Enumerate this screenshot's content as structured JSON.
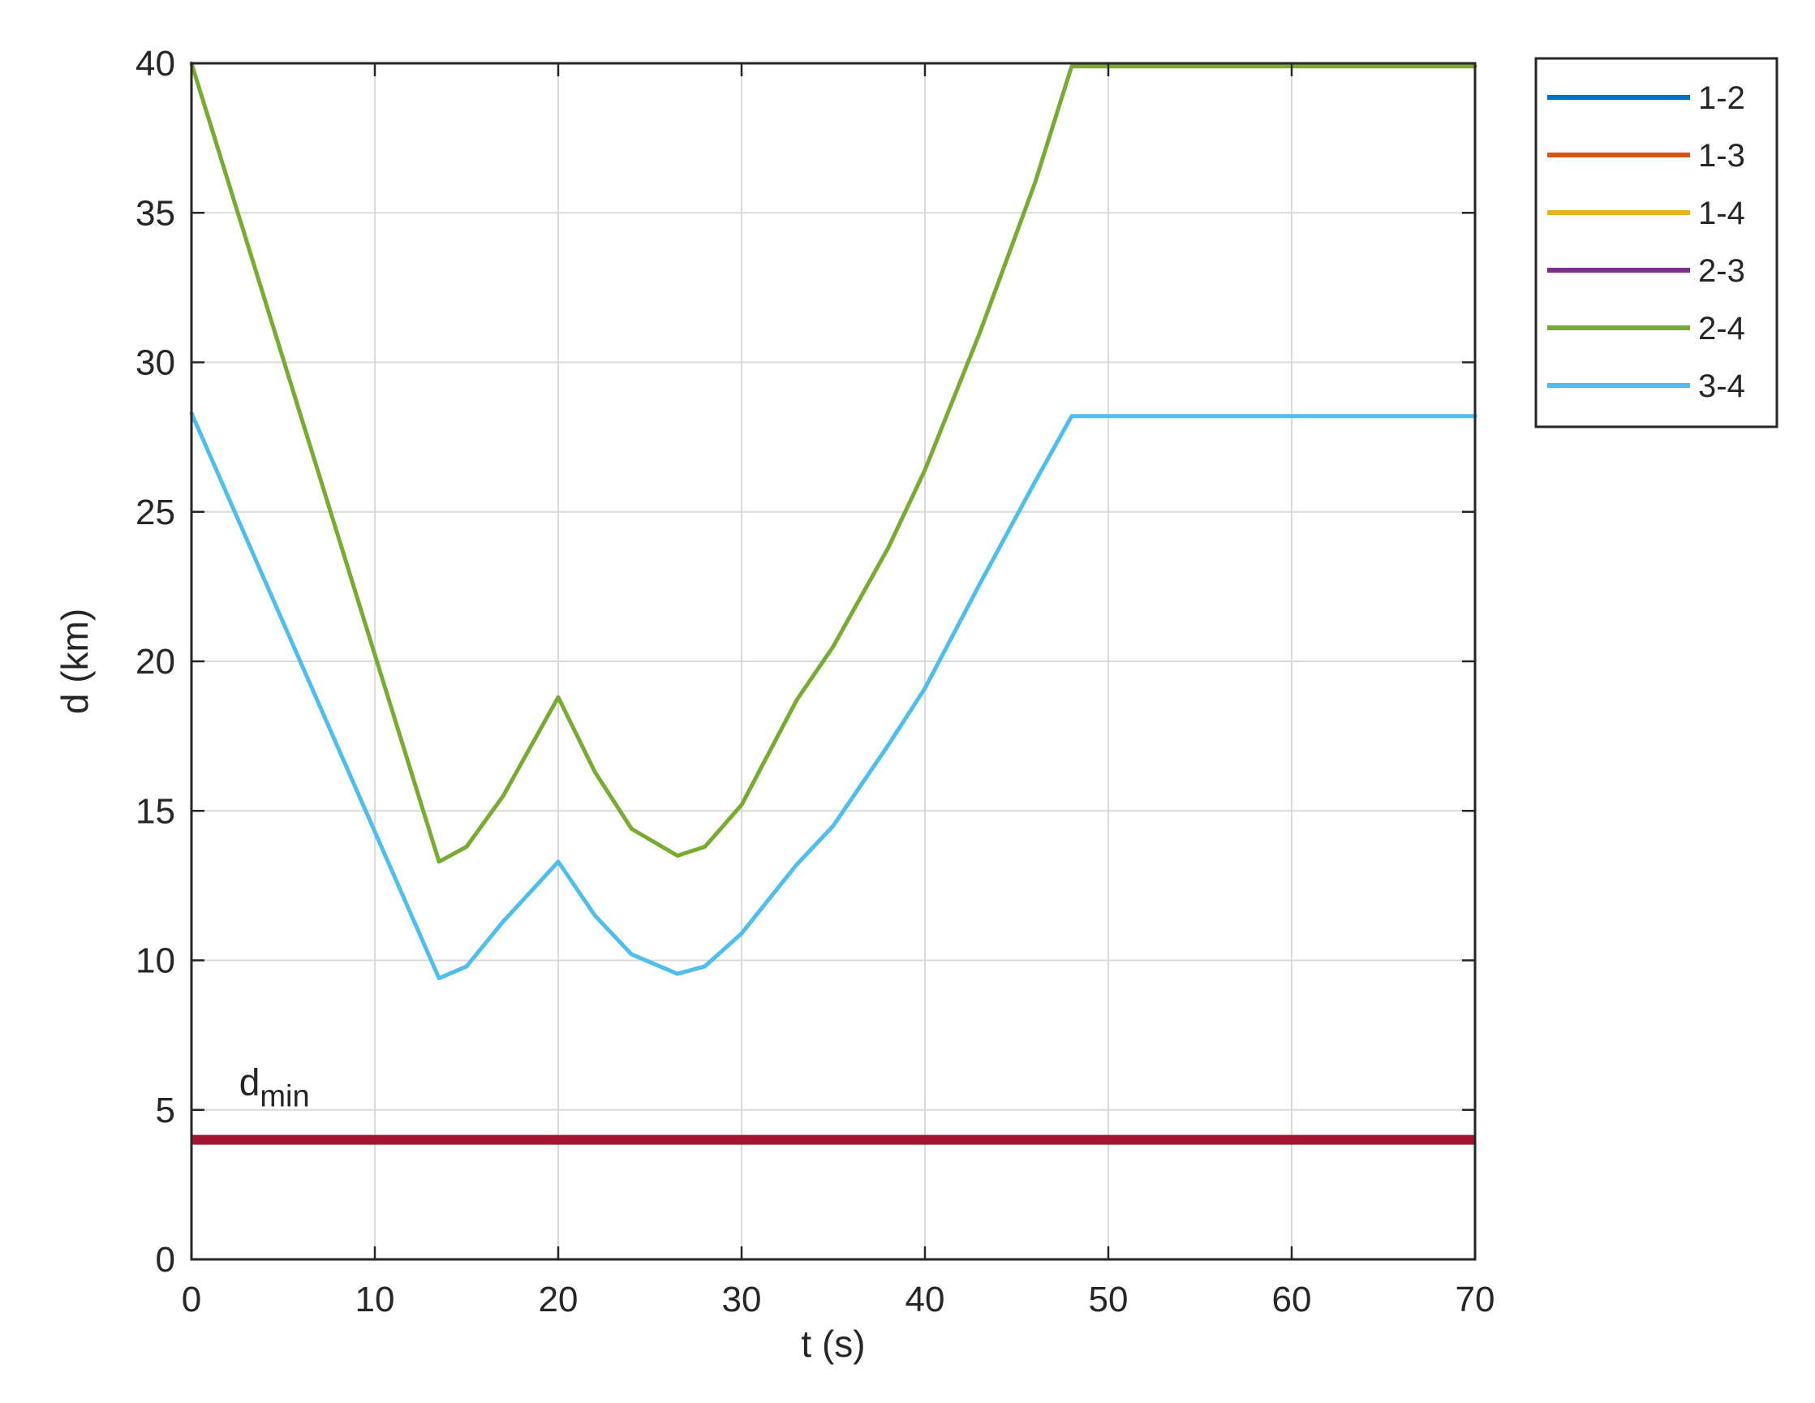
{
  "chart_data": {
    "type": "line",
    "xlabel": "t (s)",
    "ylabel": "d (km)",
    "xlim": [
      0,
      70
    ],
    "ylim": [
      0,
      40
    ],
    "xticks": [
      "0",
      "10",
      "20",
      "30",
      "40",
      "50",
      "60",
      "70"
    ],
    "yticks": [
      "0",
      "5",
      "10",
      "15",
      "20",
      "25",
      "30",
      "35",
      "40"
    ],
    "grid": true,
    "legend_position": "outside-top-right",
    "series": [
      {
        "name": "1-2",
        "color": "#0072BD",
        "points": []
      },
      {
        "name": "1-3",
        "color": "#D95319",
        "points": []
      },
      {
        "name": "1-4",
        "color": "#EDB120",
        "points": []
      },
      {
        "name": "2-3",
        "color": "#7E2F8E",
        "points": []
      },
      {
        "name": "2-4",
        "color": "#77AC30",
        "points": [
          [
            0,
            40
          ],
          [
            13.5,
            13.3
          ],
          [
            15,
            13.8
          ],
          [
            17,
            15.5
          ],
          [
            20,
            18.8
          ],
          [
            22,
            16.3
          ],
          [
            24,
            14.4
          ],
          [
            26.5,
            13.5
          ],
          [
            28,
            13.8
          ],
          [
            30,
            15.2
          ],
          [
            33,
            18.7
          ],
          [
            35,
            20.5
          ],
          [
            38,
            23.8
          ],
          [
            40,
            26.4
          ],
          [
            43,
            31
          ],
          [
            46,
            36
          ],
          [
            48,
            39.9
          ],
          [
            70,
            39.9
          ]
        ]
      },
      {
        "name": "3-4",
        "color": "#4DBEEE",
        "points": [
          [
            0,
            28.3
          ],
          [
            13.5,
            9.4
          ],
          [
            15,
            9.8
          ],
          [
            17,
            11.3
          ],
          [
            20,
            13.3
          ],
          [
            22,
            11.5
          ],
          [
            24,
            10.2
          ],
          [
            26.5,
            9.55
          ],
          [
            28,
            9.8
          ],
          [
            30,
            10.9
          ],
          [
            33,
            13.2
          ],
          [
            35,
            14.5
          ],
          [
            38,
            17.2
          ],
          [
            40,
            19.1
          ],
          [
            43,
            22.6
          ],
          [
            46,
            26
          ],
          [
            48,
            28.2
          ],
          [
            70,
            28.2
          ]
        ]
      }
    ],
    "threshold": {
      "label_main": "d",
      "label_sub": "min",
      "value": 4,
      "color": "#A2142F"
    }
  }
}
